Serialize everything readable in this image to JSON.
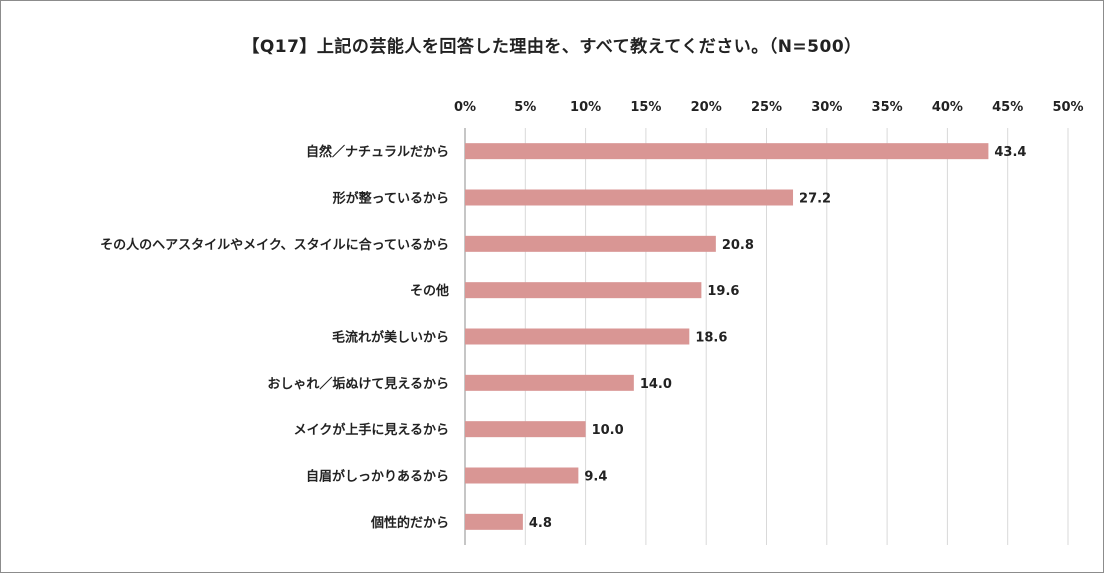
{
  "chart_data": {
    "type": "bar",
    "orientation": "horizontal",
    "title": "【Q17】上記の芸能人を回答した理由を、すべて教えてください。（N=500）",
    "categories": [
      "自然／ナチュラルだから",
      "形が整っているから",
      "その人のヘアスタイルやメイク、スタイルに合っているから",
      "その他",
      "毛流れが美しいから",
      "おしゃれ／垢ぬけて見えるから",
      "メイクが上手に見えるから",
      "自眉がしっかりあるから",
      "個性的だから"
    ],
    "values": [
      43.4,
      27.2,
      20.8,
      19.6,
      18.6,
      14.0,
      10.0,
      9.4,
      4.8
    ],
    "value_labels": [
      "43.4",
      "27.2",
      "20.8",
      "19.6",
      "18.6",
      "14.0",
      "10.0",
      "9.4",
      "4.8"
    ],
    "xlim": [
      0,
      50
    ],
    "tick_labels": [
      "0%",
      "5%",
      "10%",
      "15%",
      "20%",
      "25%",
      "30%",
      "35%",
      "40%",
      "45%",
      "50%"
    ],
    "grid": true,
    "axis_position": "top",
    "bar_color": "#d99694"
  }
}
